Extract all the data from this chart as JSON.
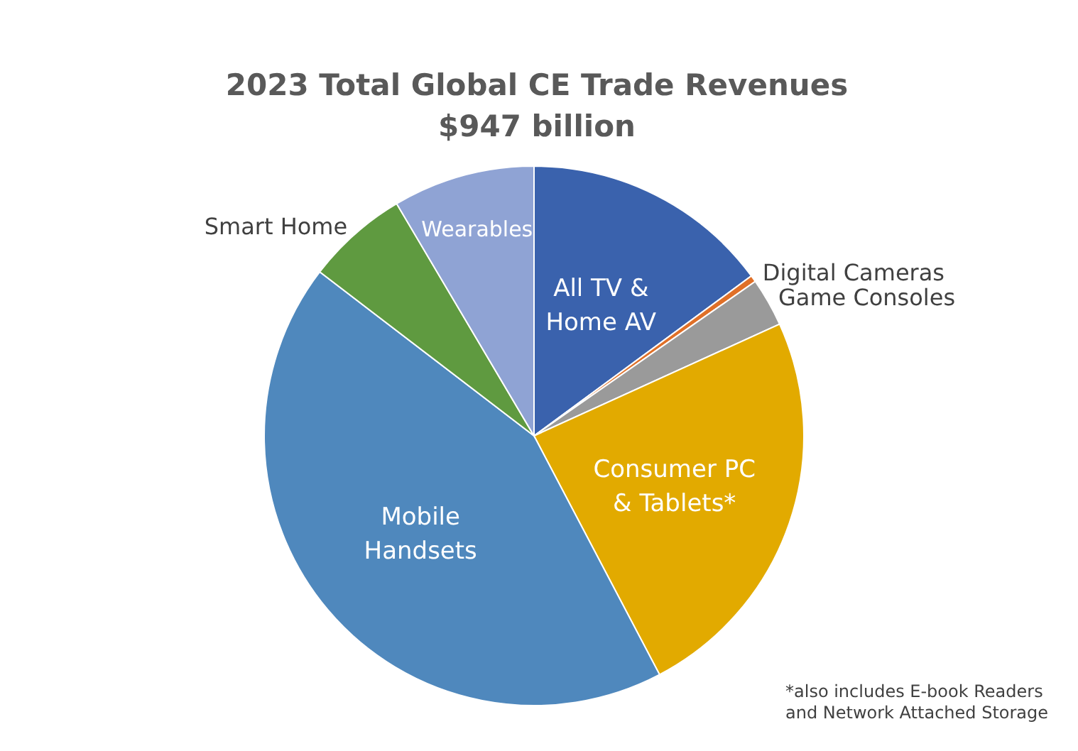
{
  "chart_data": {
    "type": "pie",
    "title": "2023 Total Global CE Trade Revenues",
    "subtitle": "$947 billion",
    "categories": [
      "All TV & Home AV",
      "Digital Cameras",
      "Game Consoles",
      "Consumer PC & Tablets*",
      "Mobile Handsets",
      "Smart Home",
      "Wearables"
    ],
    "values": [
      14.9,
      0.4,
      2.9,
      24.1,
      43.1,
      6.1,
      8.5
    ],
    "colors": [
      "#3a62ad",
      "#e07028",
      "#9a9a9a",
      "#e2aa00",
      "#4f88bd",
      "#5f9a40",
      "#8fa3d4"
    ],
    "annotations": [
      "*also includes E-book Readers and Network Attached Storage"
    ],
    "legend": false
  }
}
